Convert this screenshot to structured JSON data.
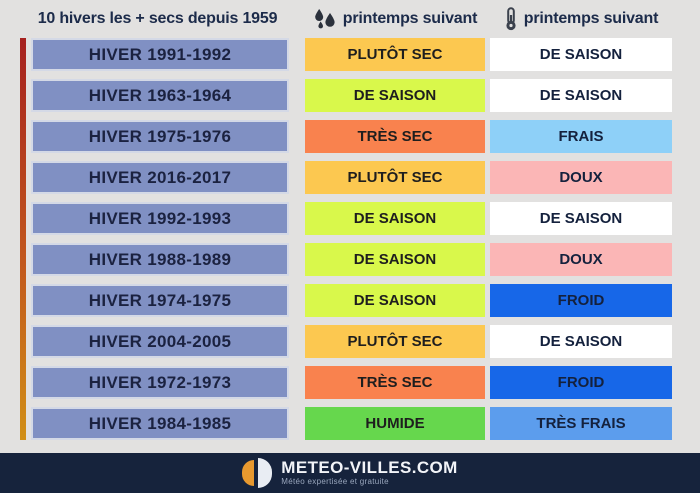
{
  "header": {
    "col1": "10 hivers les + secs depuis 1959",
    "col2": "printemps suivant",
    "col3": "printemps suivant"
  },
  "rows": [
    {
      "winter": "HIVER 1991-1992",
      "precip": "PLUTÔT SEC",
      "temp": "DE SAISON"
    },
    {
      "winter": "HIVER 1963-1964",
      "precip": "DE SAISON",
      "temp": "DE SAISON"
    },
    {
      "winter": "HIVER 1975-1976",
      "precip": "TRÈS SEC",
      "temp": "FRAIS"
    },
    {
      "winter": "HIVER 2016-2017",
      "precip": "PLUTÔT SEC",
      "temp": "DOUX"
    },
    {
      "winter": "HIVER 1992-1993",
      "precip": "DE SAISON",
      "temp": "DE SAISON"
    },
    {
      "winter": "HIVER 1988-1989",
      "precip": "DE SAISON",
      "temp": "DOUX"
    },
    {
      "winter": "HIVER 1974-1975",
      "precip": "DE SAISON",
      "temp": "FROID"
    },
    {
      "winter": "HIVER 2004-2005",
      "precip": "PLUTÔT SEC",
      "temp": "DE SAISON"
    },
    {
      "winter": "HIVER 1972-1973",
      "precip": "TRÈS SEC",
      "temp": "FROID"
    },
    {
      "winter": "HIVER 1984-1985",
      "precip": "HUMIDE",
      "temp": "TRÈS FRAIS"
    }
  ],
  "colors": {
    "background": "#e2e1e0",
    "winter_box": "#8090c3",
    "rank_bar_top": "#a6211f",
    "rank_bar_bottom": "#d18f16",
    "footer_bg": "#16233c",
    "logo_orange": "#e8992f",
    "precip": {
      "PLUTÔT SEC": "#fcc850",
      "DE SAISON": "#d9f84b",
      "TRÈS SEC": "#f9824e",
      "HUMIDE": "#66d74d"
    },
    "temp": {
      "DE SAISON": "#ffffff",
      "FRAIS": "#8ed0f8",
      "DOUX": "#fbb6b6",
      "FROID": "#1767e8",
      "TRÈS FRAIS": "#5c9ded"
    }
  },
  "footer": {
    "brand": "METEO-VILLES.COM",
    "tagline": "Météo expertisée et gratuite"
  },
  "chart_data": {
    "type": "table",
    "title": "10 hivers les + secs depuis 1959",
    "columns": [
      "Hiver",
      "Précipitations printemps suivant",
      "Températures printemps suivant"
    ],
    "rows": [
      [
        "HIVER 1991-1992",
        "PLUTÔT SEC",
        "DE SAISON"
      ],
      [
        "HIVER 1963-1964",
        "DE SAISON",
        "DE SAISON"
      ],
      [
        "HIVER 1975-1976",
        "TRÈS SEC",
        "FRAIS"
      ],
      [
        "HIVER 2016-2017",
        "PLUTÔT SEC",
        "DOUX"
      ],
      [
        "HIVER 1992-1993",
        "DE SAISON",
        "DE SAISON"
      ],
      [
        "HIVER 1988-1989",
        "DE SAISON",
        "DOUX"
      ],
      [
        "HIVER 1974-1975",
        "DE SAISON",
        "FROID"
      ],
      [
        "HIVER 2004-2005",
        "PLUTÔT SEC",
        "DE SAISON"
      ],
      [
        "HIVER 1972-1973",
        "TRÈS SEC",
        "FROID"
      ],
      [
        "HIVER 1984-1985",
        "HUMIDE",
        "TRÈS FRAIS"
      ]
    ],
    "legend_position": "none",
    "grid": false
  }
}
